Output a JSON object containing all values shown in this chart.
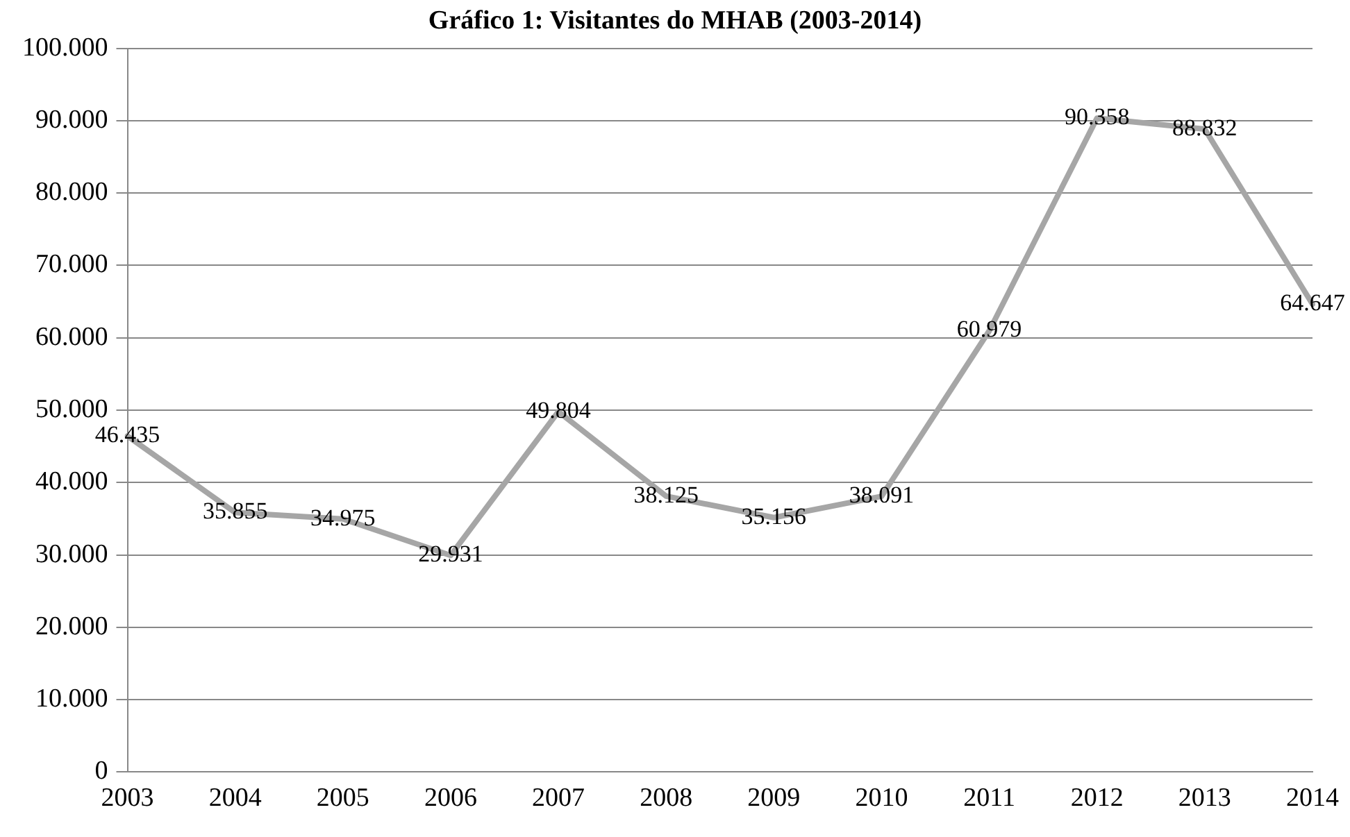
{
  "chart_data": {
    "type": "line",
    "title": "Gráfico 1: Visitantes do MHAB (2003-2014)",
    "categories": [
      "2003",
      "2004",
      "2005",
      "2006",
      "2007",
      "2008",
      "2009",
      "2010",
      "2011",
      "2012",
      "2013",
      "2014"
    ],
    "series": [
      {
        "color": "#a6a6a6",
        "values": [
          46435,
          35855,
          34975,
          29931,
          49804,
          38125,
          35156,
          38091,
          60979,
          90358,
          88832,
          64647
        ],
        "value_labels": [
          "46.435",
          "35.855",
          "34.975",
          "29.931",
          "49.804",
          "38.125",
          "35.156",
          "38.091",
          "60.979",
          "90.358",
          "88.832",
          "64.647"
        ]
      }
    ],
    "ylim": [
      0,
      100000
    ],
    "yticks": [
      {
        "value": 0,
        "label": "0"
      },
      {
        "value": 10000,
        "label": "10.000"
      },
      {
        "value": 20000,
        "label": "20.000"
      },
      {
        "value": 30000,
        "label": "30.000"
      },
      {
        "value": 40000,
        "label": "40.000"
      },
      {
        "value": 50000,
        "label": "50.000"
      },
      {
        "value": 60000,
        "label": "60.000"
      },
      {
        "value": 70000,
        "label": "70.000"
      },
      {
        "value": 80000,
        "label": "80.000"
      },
      {
        "value": 90000,
        "label": "90.000"
      },
      {
        "value": 100000,
        "label": "100.000"
      }
    ],
    "grid": "y",
    "legend": false,
    "marker": "none",
    "line_style": "solid"
  }
}
